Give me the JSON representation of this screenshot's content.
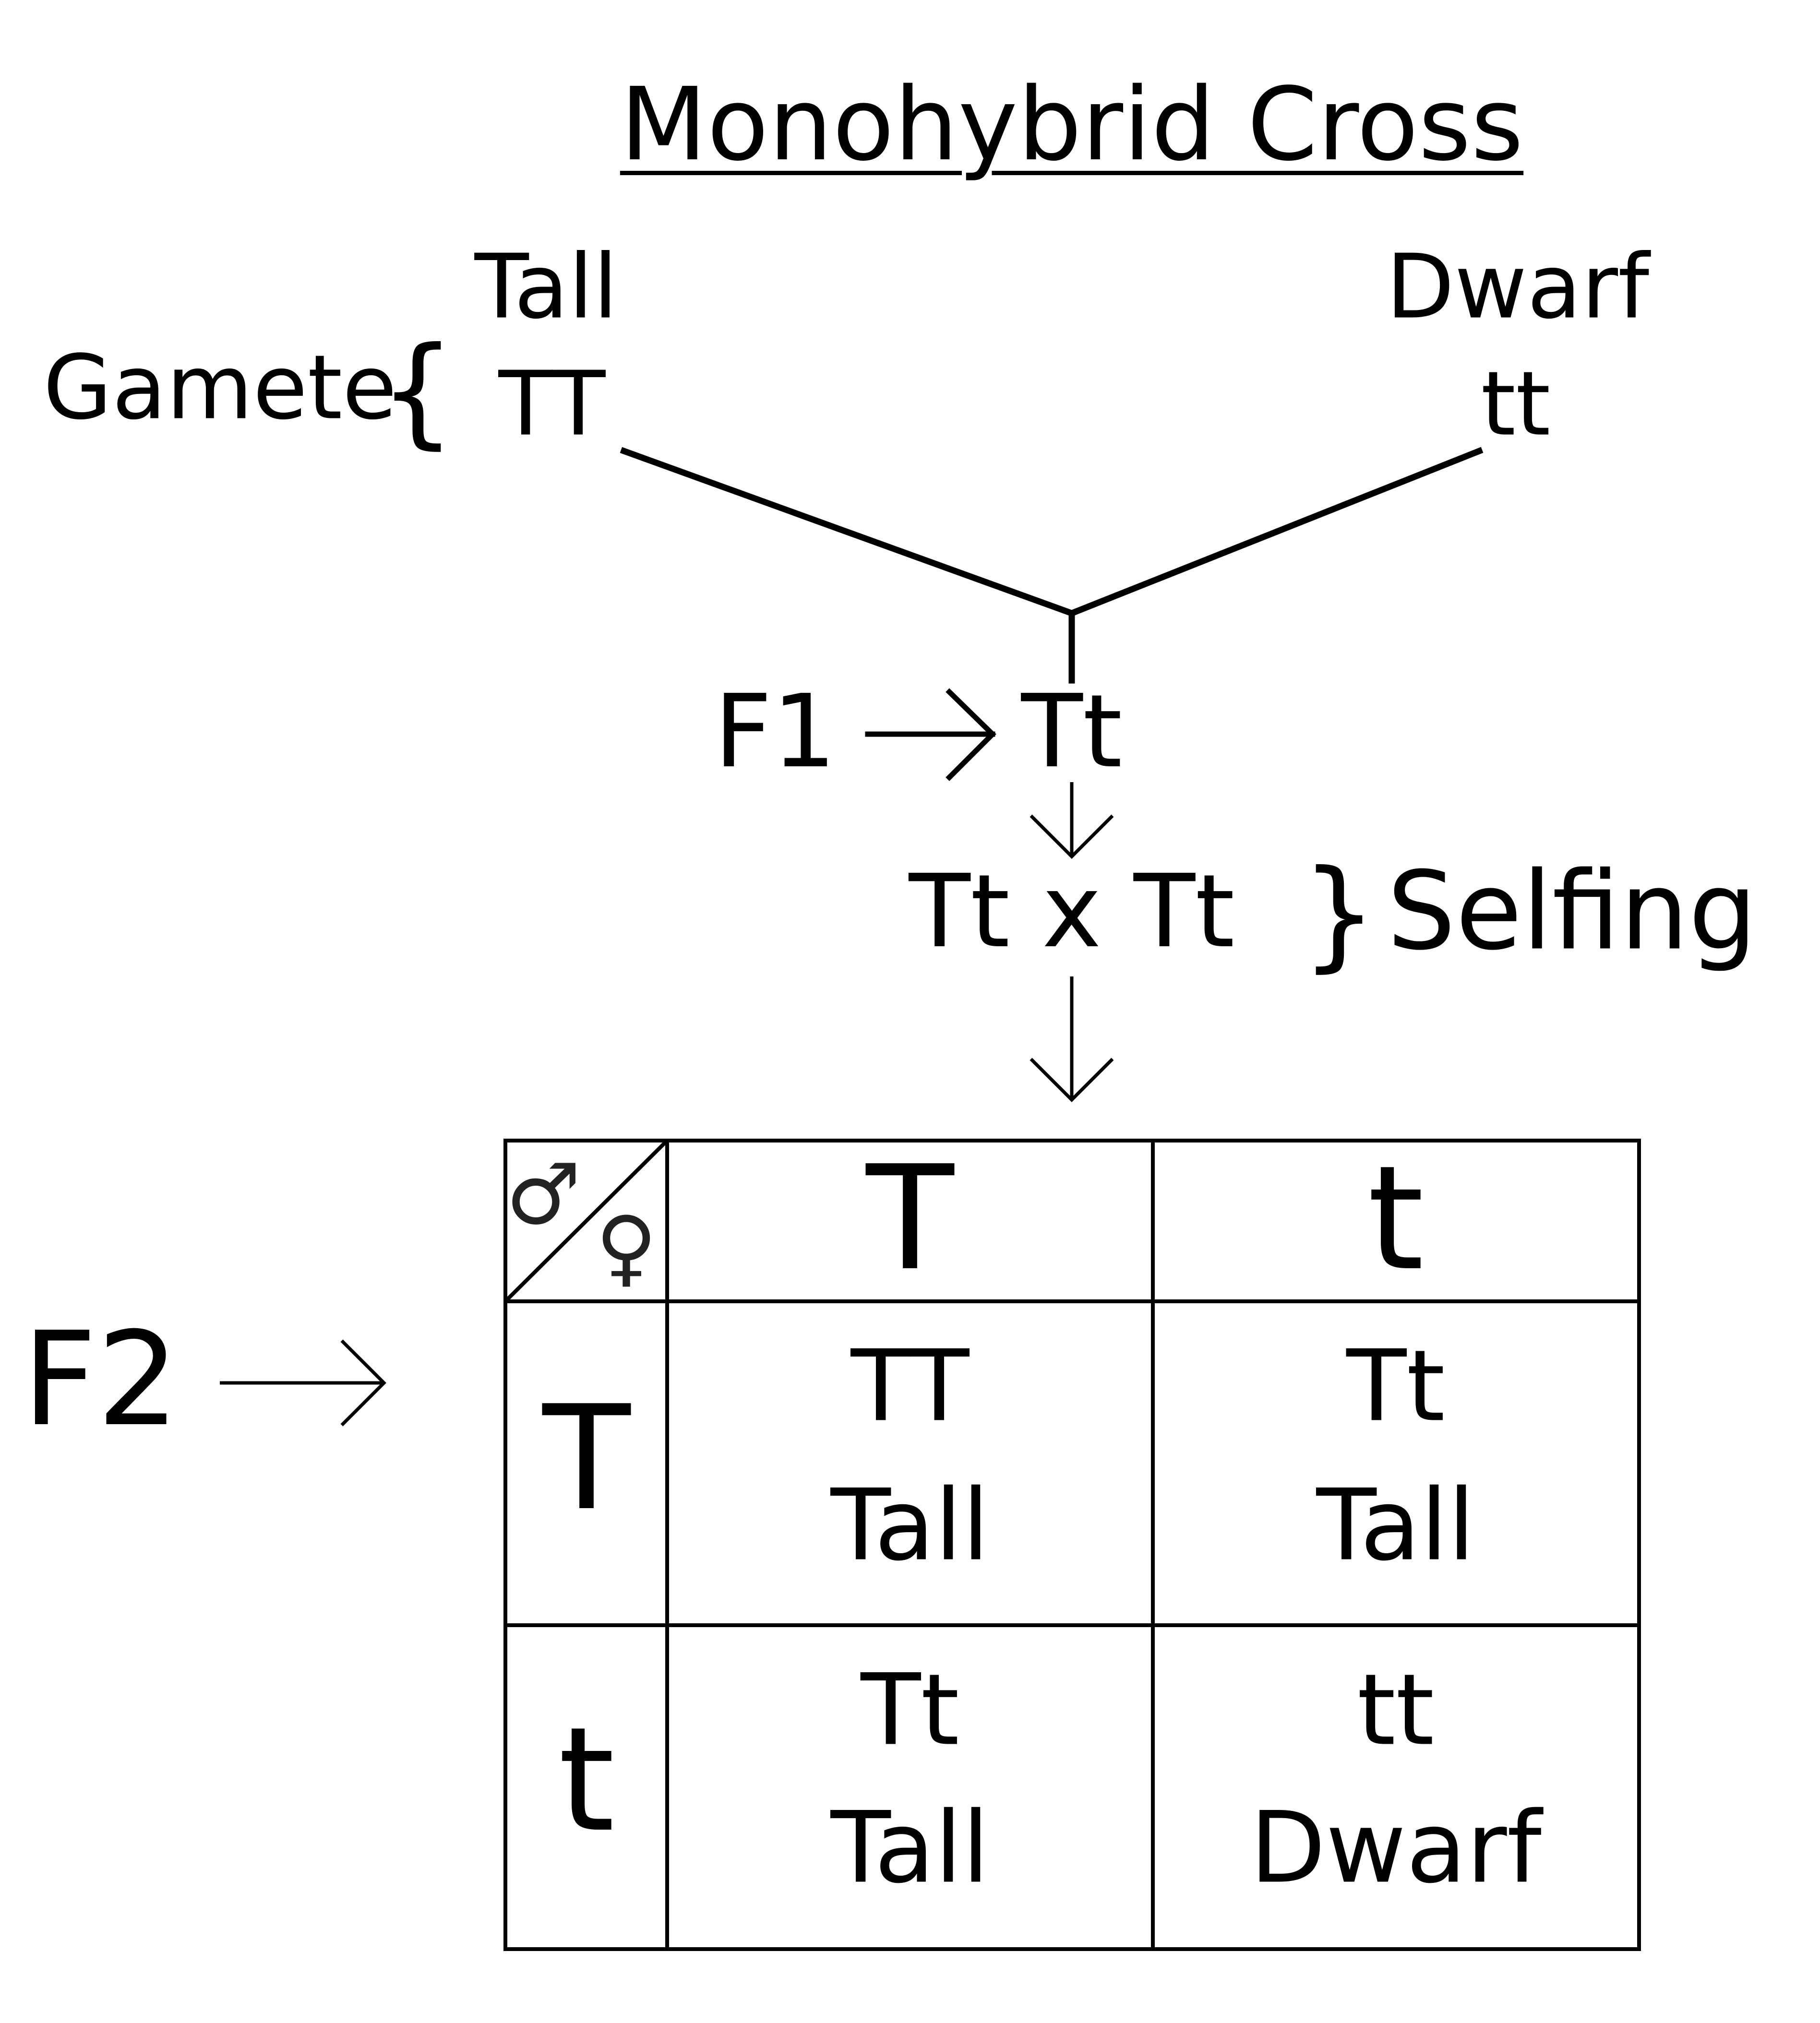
{
  "title": "Monohybrid Cross",
  "gamete_label": "Gamete",
  "parents": {
    "left": {
      "phenotype": "Tall",
      "genotype": "TT"
    },
    "right": {
      "phenotype": "Dwarf",
      "genotype": "tt"
    }
  },
  "f1": {
    "label": "F1",
    "genotype": "Tt"
  },
  "selfing": {
    "cross": "Tt x Tt",
    "label": "Selfing",
    "brace": "}"
  },
  "gamete_brace": "{",
  "f2": {
    "label": "F2"
  },
  "punnett": {
    "male_symbol": "♂",
    "female_symbol": "♀",
    "column_headers": [
      "T",
      "t"
    ],
    "row_headers": [
      "T",
      "t"
    ],
    "cells": [
      [
        {
          "genotype": "TT",
          "phenotype": "Tall"
        },
        {
          "genotype": "Tt",
          "phenotype": "Tall"
        }
      ],
      [
        {
          "genotype": "Tt",
          "phenotype": "Tall"
        },
        {
          "genotype": "tt",
          "phenotype": "Dwarf"
        }
      ]
    ]
  },
  "icons": [
    "male-symbol-icon",
    "female-symbol-icon",
    "arrow-right-icon",
    "arrow-down-icon"
  ]
}
